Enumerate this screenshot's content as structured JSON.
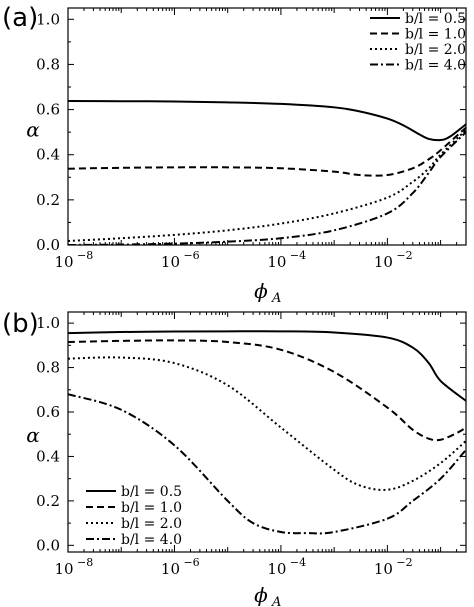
{
  "chart_data": [
    {
      "panel_label": "(a)",
      "type": "line",
      "xscale": "log",
      "xlim": [
        1e-08,
        0.3
      ],
      "ylim": [
        0,
        1.05
      ],
      "xlabel": "ϕ",
      "xlabel_sub": "A",
      "ylabel": "α",
      "xticks": [
        1e-08,
        1e-06,
        0.0001,
        0.01
      ],
      "xtick_labels": [
        {
          "base": "10",
          "exp": "−8"
        },
        {
          "base": "10",
          "exp": "−6"
        },
        {
          "base": "10",
          "exp": "−4"
        },
        {
          "base": "10",
          "exp": "−2"
        }
      ],
      "yticks": [
        0.0,
        0.2,
        0.4,
        0.6,
        0.8,
        1.0
      ],
      "ytick_labels": [
        "0.0",
        "0.2",
        "0.4",
        "0.6",
        "0.8",
        "1.0"
      ],
      "grid": false,
      "legend_position": "top-right",
      "series": [
        {
          "name": "b/l = 0.5",
          "dash": "solid",
          "x": [
            1e-08,
            1e-07,
            1e-06,
            1e-05,
            0.0001,
            0.001,
            0.003,
            0.01,
            0.02,
            0.04,
            0.06,
            0.1,
            0.15,
            0.3
          ],
          "y": [
            0.638,
            0.637,
            0.636,
            0.632,
            0.625,
            0.61,
            0.592,
            0.56,
            0.53,
            0.49,
            0.47,
            0.465,
            0.48,
            0.535
          ]
        },
        {
          "name": "b/l = 1.0",
          "dash": "dashed",
          "x": [
            1e-08,
            1e-07,
            1e-06,
            1e-05,
            0.0001,
            0.001,
            0.003,
            0.01,
            0.03,
            0.06,
            0.1,
            0.3
          ],
          "y": [
            0.338,
            0.342,
            0.344,
            0.344,
            0.34,
            0.325,
            0.31,
            0.31,
            0.34,
            0.38,
            0.42,
            0.52
          ]
        },
        {
          "name": "b/l = 2.0",
          "dash": "dotted",
          "x": [
            1e-08,
            1e-07,
            1e-06,
            1e-05,
            0.0001,
            0.001,
            0.01,
            0.03,
            0.06,
            0.1,
            0.3
          ],
          "y": [
            0.018,
            0.03,
            0.045,
            0.065,
            0.095,
            0.14,
            0.21,
            0.28,
            0.34,
            0.4,
            0.51
          ]
        },
        {
          "name": "b/l = 4.0",
          "dash": "dashdot",
          "x": [
            1e-08,
            1e-07,
            1e-06,
            1e-05,
            0.0001,
            0.001,
            0.01,
            0.03,
            0.06,
            0.1,
            0.3
          ],
          "y": [
            0.0,
            0.002,
            0.006,
            0.015,
            0.03,
            0.065,
            0.14,
            0.23,
            0.32,
            0.39,
            0.5
          ]
        }
      ]
    },
    {
      "panel_label": "(b)",
      "type": "line",
      "xscale": "log",
      "xlim": [
        1e-08,
        0.3
      ],
      "ylim": [
        -0.03,
        1.05
      ],
      "xlabel": "ϕ",
      "xlabel_sub": "A",
      "ylabel": "α",
      "xticks": [
        1e-08,
        1e-06,
        0.0001,
        0.01
      ],
      "xtick_labels": [
        {
          "base": "10",
          "exp": "−8"
        },
        {
          "base": "10",
          "exp": "−6"
        },
        {
          "base": "10",
          "exp": "−4"
        },
        {
          "base": "10",
          "exp": "−2"
        }
      ],
      "yticks": [
        0.0,
        0.2,
        0.4,
        0.6,
        0.8,
        1.0
      ],
      "ytick_labels": [
        "0.0",
        "0.2",
        "0.4",
        "0.6",
        "0.8",
        "1.0"
      ],
      "grid": false,
      "legend_position": "bottom-left",
      "series": [
        {
          "name": "b/l = 0.5",
          "dash": "solid",
          "x": [
            1e-08,
            1e-07,
            1e-06,
            1e-05,
            0.0001,
            0.001,
            0.01,
            0.03,
            0.06,
            0.1,
            0.3
          ],
          "y": [
            0.955,
            0.96,
            0.962,
            0.963,
            0.963,
            0.958,
            0.935,
            0.89,
            0.82,
            0.74,
            0.65
          ]
        },
        {
          "name": "b/l = 1.0",
          "dash": "dashed",
          "x": [
            1e-08,
            1e-07,
            1e-06,
            1e-05,
            0.0001,
            0.001,
            0.01,
            0.03,
            0.06,
            0.1,
            0.2,
            0.3
          ],
          "y": [
            0.915,
            0.92,
            0.922,
            0.915,
            0.88,
            0.78,
            0.62,
            0.52,
            0.48,
            0.475,
            0.505,
            0.53
          ]
        },
        {
          "name": "b/l = 2.0",
          "dash": "dotted",
          "x": [
            1e-08,
            1e-07,
            1e-06,
            1e-05,
            0.0001,
            0.001,
            0.003,
            0.01,
            0.03,
            0.1,
            0.3
          ],
          "y": [
            0.84,
            0.845,
            0.82,
            0.72,
            0.53,
            0.34,
            0.27,
            0.25,
            0.29,
            0.37,
            0.47
          ]
        },
        {
          "name": "b/l = 4.0",
          "dash": "dashdot",
          "x": [
            1e-08,
            1e-07,
            1e-06,
            1e-05,
            3e-05,
            0.0001,
            0.0003,
            0.001,
            0.01,
            0.03,
            0.1,
            0.3
          ],
          "y": [
            0.68,
            0.61,
            0.45,
            0.2,
            0.1,
            0.06,
            0.055,
            0.06,
            0.12,
            0.2,
            0.3,
            0.43
          ]
        }
      ]
    }
  ]
}
